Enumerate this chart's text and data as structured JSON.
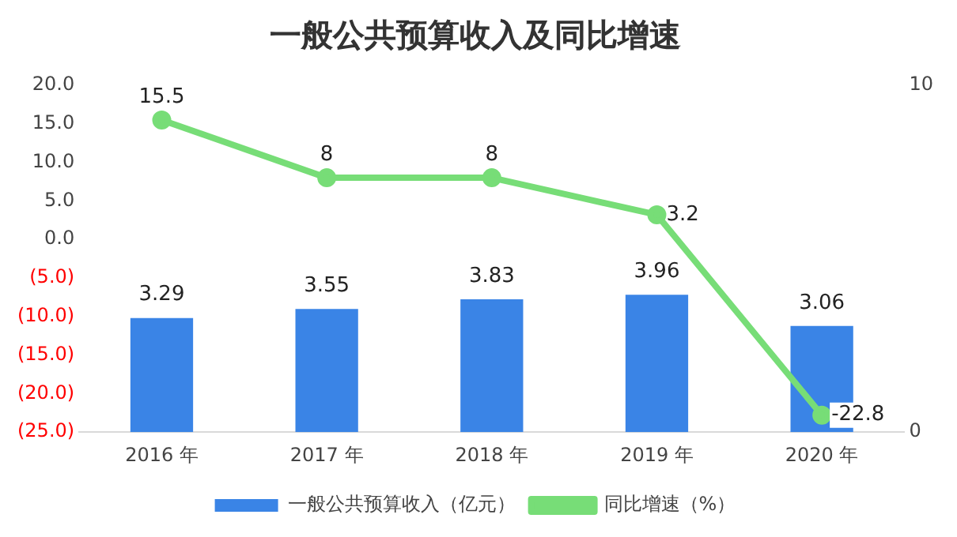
{
  "chart_data": {
    "type": "bar",
    "title": "一般公共预算收入及同比增速",
    "categories": [
      "2016 年",
      "2017 年",
      "2018 年",
      "2019 年",
      "2020 年"
    ],
    "series": [
      {
        "name": "一般公共预算收入（亿元）",
        "axis": "y2",
        "color": "#3a84e6",
        "values": [
          3.29,
          3.55,
          3.83,
          3.96,
          3.06
        ]
      },
      {
        "name": "同比增速（%）",
        "type": "line",
        "axis": "y",
        "color": "#77dd77",
        "values": [
          15.5,
          8,
          8,
          3.2,
          -22.8
        ]
      }
    ],
    "ylim": [
      -25,
      20
    ],
    "yticks": [
      {
        "value": 20,
        "label": "20.0"
      },
      {
        "value": 15,
        "label": "15.0"
      },
      {
        "value": 10,
        "label": "10.0"
      },
      {
        "value": 5,
        "label": "5.0"
      },
      {
        "value": 0,
        "label": "0.0"
      },
      {
        "value": -5,
        "label": "(5.0)"
      },
      {
        "value": -10,
        "label": "(10.0)"
      },
      {
        "value": -15,
        "label": "(15.0)"
      },
      {
        "value": -20,
        "label": "(20.0)"
      },
      {
        "value": -25,
        "label": "(25.0)"
      }
    ],
    "y2lim": [
      0,
      10
    ],
    "y2ticks": [
      0,
      10
    ],
    "data_labels": true,
    "grid": false,
    "legend": "bottom",
    "marker": "circle",
    "line_style": "solid"
  }
}
